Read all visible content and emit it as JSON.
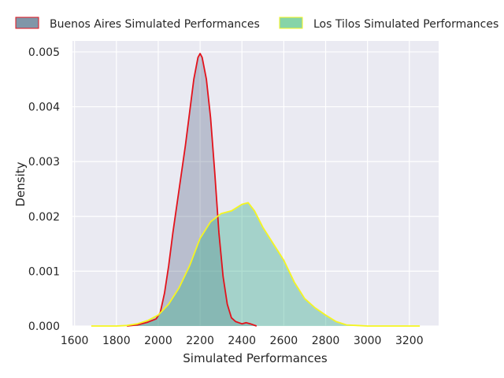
{
  "chart_data": {
    "type": "area",
    "xlabel": "Simulated Performances",
    "ylabel": "Density",
    "xlim": [
      1590,
      3340
    ],
    "ylim": [
      0,
      0.0052
    ],
    "xticks": [
      1600,
      1800,
      2000,
      2200,
      2400,
      2600,
      2800,
      3000,
      3200
    ],
    "xtick_labels": [
      "1600",
      "1800",
      "2000",
      "2200",
      "2400",
      "2600",
      "2800",
      "3000",
      "3200"
    ],
    "yticks": [
      0,
      0.001,
      0.002,
      0.003,
      0.004,
      0.005
    ],
    "ytick_labels": [
      "0.000",
      "0.001",
      "0.002",
      "0.003",
      "0.004",
      "0.005"
    ],
    "grid": true,
    "legend_position": "top",
    "series": [
      {
        "name": "Buenos Aires Simulated Performances",
        "fill": "#4a587c",
        "fill_opacity": 0.3,
        "line": "#e3121b",
        "legend_fill": "#8096a8",
        "legend_edge": "#e3121b",
        "points": [
          [
            1850,
            0
          ],
          [
            1900,
            2e-05
          ],
          [
            1950,
            7e-05
          ],
          [
            1990,
            0.00013
          ],
          [
            2010,
            0.00025
          ],
          [
            2030,
            0.0006
          ],
          [
            2050,
            0.0011
          ],
          [
            2070,
            0.0017
          ],
          [
            2100,
            0.0025
          ],
          [
            2130,
            0.0033
          ],
          [
            2150,
            0.0039
          ],
          [
            2170,
            0.0045
          ],
          [
            2190,
            0.0049
          ],
          [
            2200,
            0.00497
          ],
          [
            2210,
            0.0049
          ],
          [
            2230,
            0.0045
          ],
          [
            2250,
            0.0038
          ],
          [
            2270,
            0.0028
          ],
          [
            2290,
            0.0017
          ],
          [
            2310,
            0.0009
          ],
          [
            2330,
            0.0004
          ],
          [
            2350,
            0.00015
          ],
          [
            2370,
            8e-05
          ],
          [
            2400,
            4e-05
          ],
          [
            2420,
            6e-05
          ],
          [
            2440,
            4e-05
          ],
          [
            2470,
            0
          ]
        ]
      },
      {
        "name": "Los Tilos Simulated Performances",
        "fill": "#3db08f",
        "fill_opacity": 0.4,
        "line": "#f5f520",
        "legend_fill": "#86d4a8",
        "legend_edge": "#f5f520",
        "points": [
          [
            1680,
            0
          ],
          [
            1800,
            0
          ],
          [
            1850,
            1e-05
          ],
          [
            1900,
            4e-05
          ],
          [
            1950,
            0.0001
          ],
          [
            2000,
            0.0002
          ],
          [
            2050,
            0.0004
          ],
          [
            2100,
            0.0007
          ],
          [
            2150,
            0.0011
          ],
          [
            2200,
            0.0016
          ],
          [
            2250,
            0.0019
          ],
          [
            2300,
            0.00205
          ],
          [
            2350,
            0.0021
          ],
          [
            2400,
            0.00222
          ],
          [
            2430,
            0.00225
          ],
          [
            2460,
            0.0021
          ],
          [
            2500,
            0.0018
          ],
          [
            2550,
            0.0015
          ],
          [
            2600,
            0.0012
          ],
          [
            2650,
            0.0008
          ],
          [
            2700,
            0.0005
          ],
          [
            2750,
            0.00033
          ],
          [
            2800,
            0.0002
          ],
          [
            2850,
            8e-05
          ],
          [
            2900,
            2e-05
          ],
          [
            2950,
            1e-05
          ],
          [
            3000,
            0
          ],
          [
            3250,
            0
          ]
        ]
      }
    ]
  }
}
